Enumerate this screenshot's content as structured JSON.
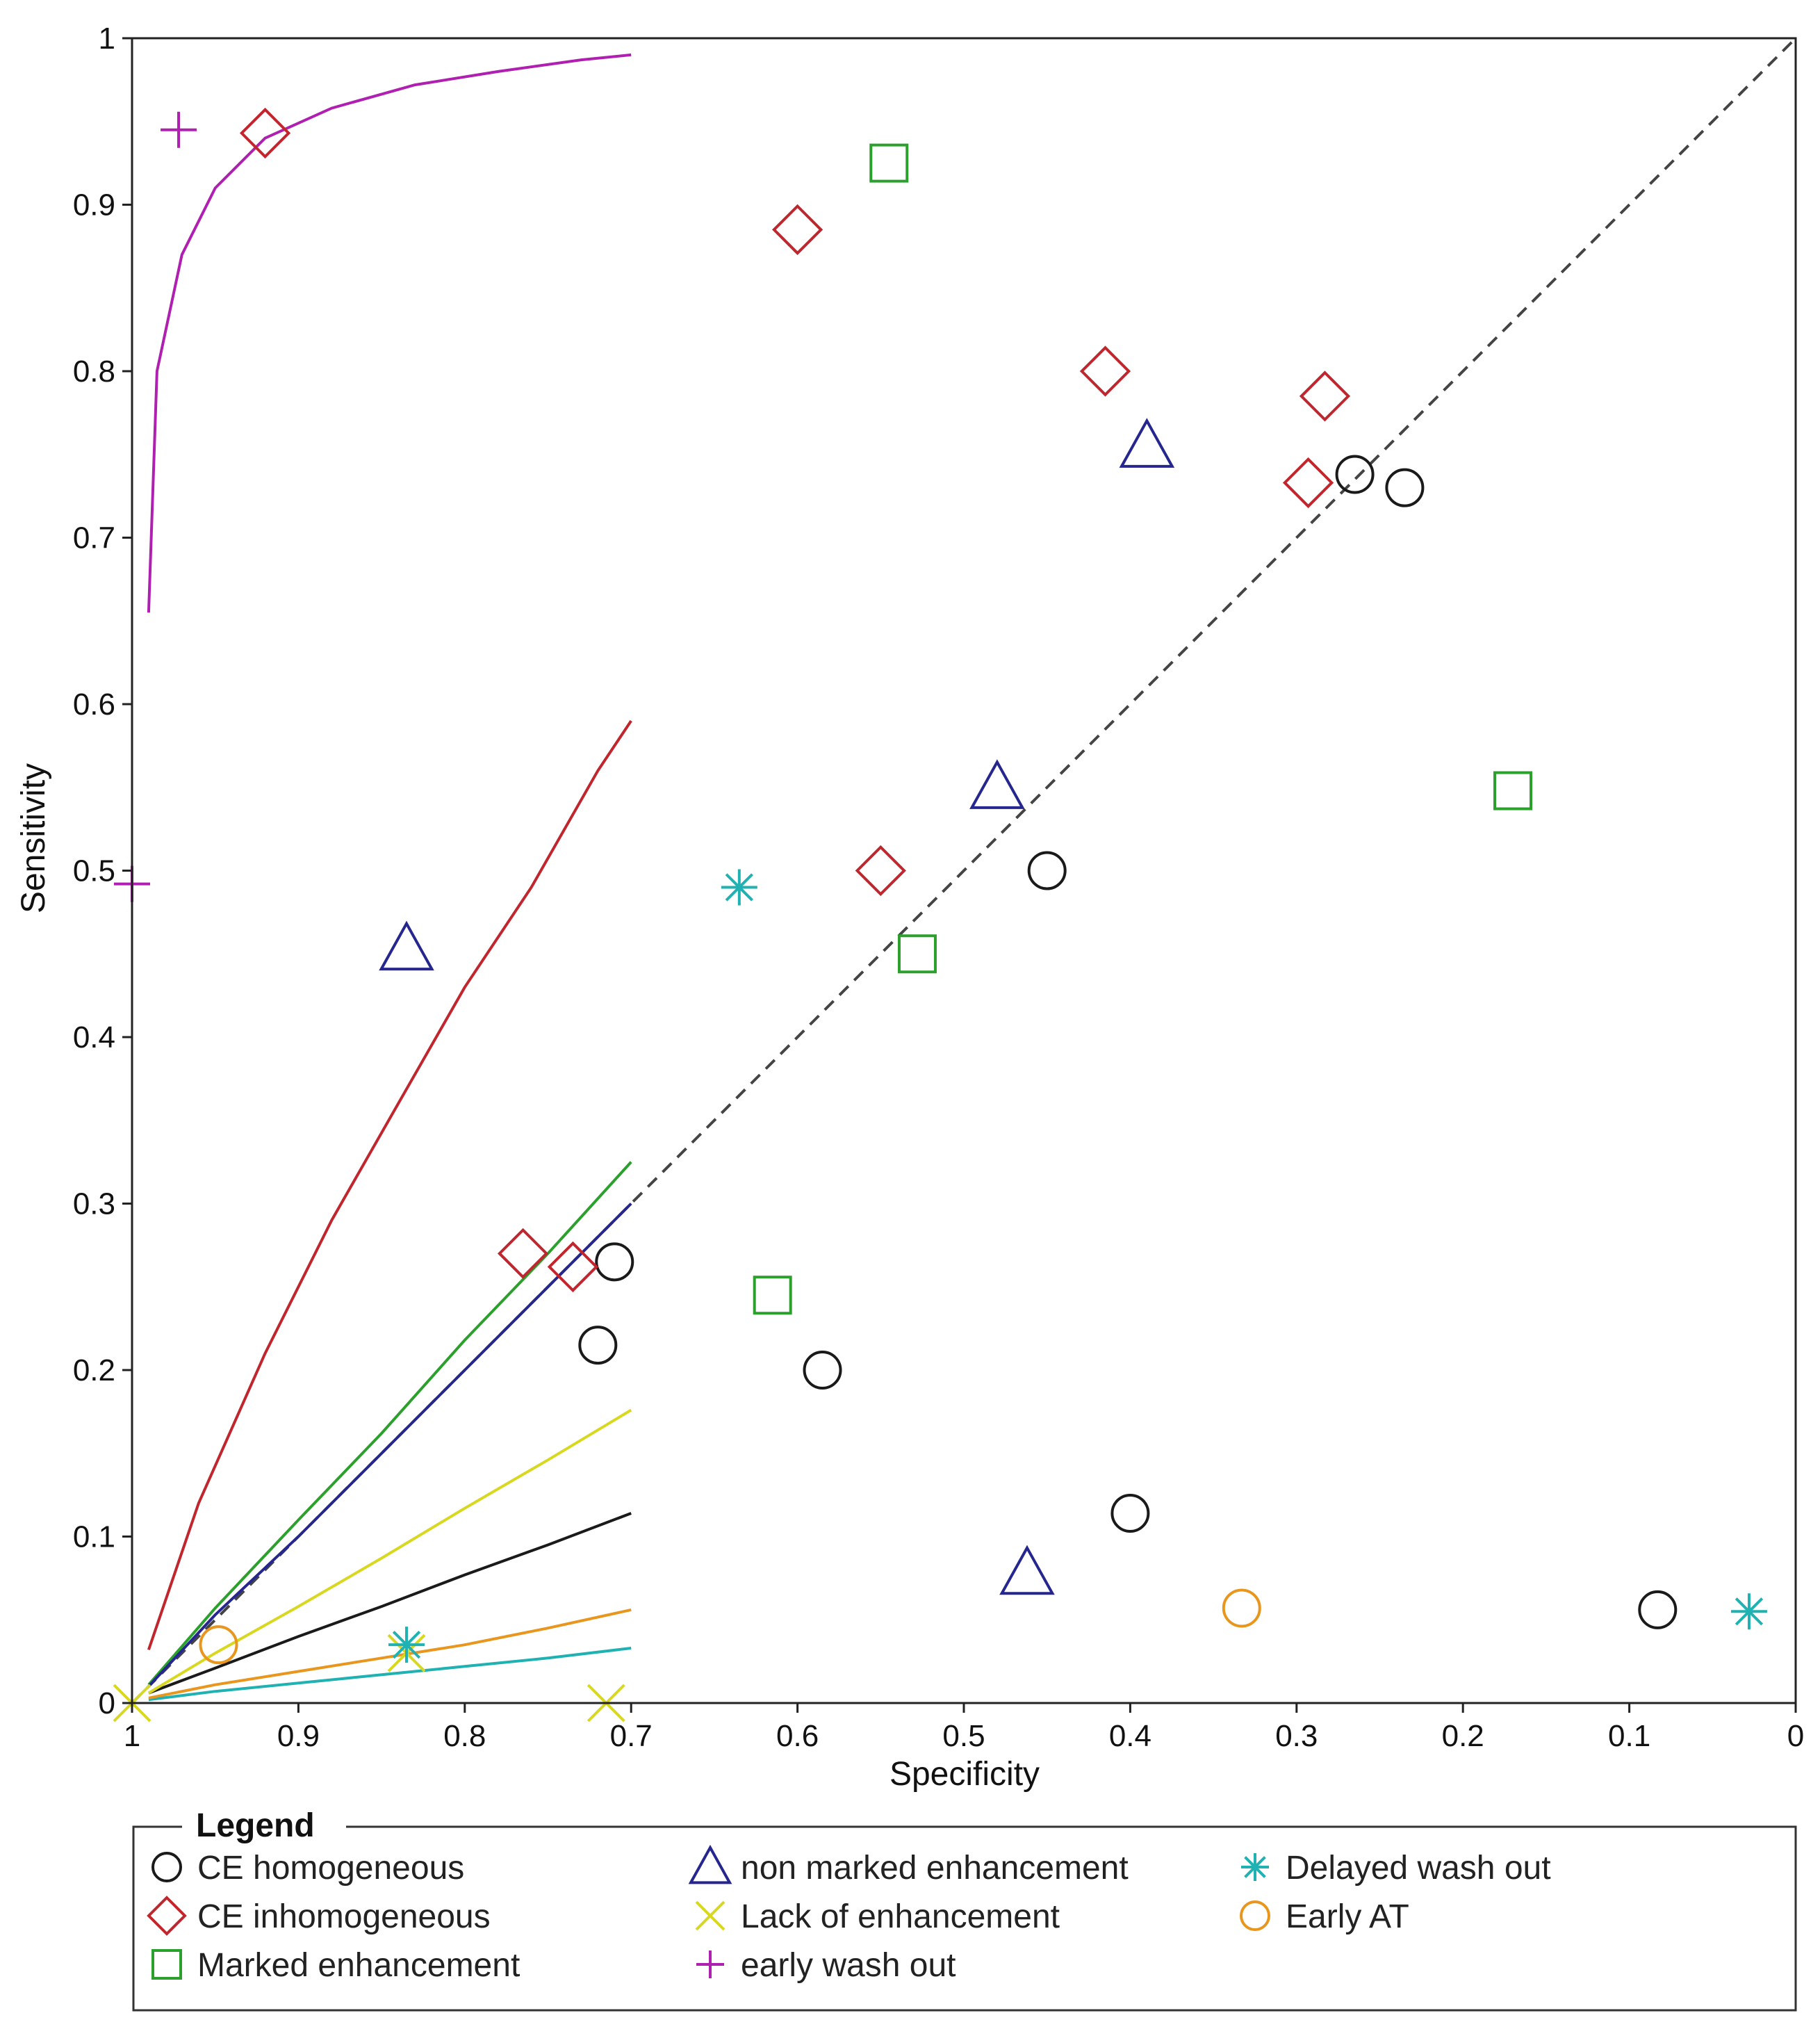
{
  "chart_data": {
    "type": "scatter",
    "title": "",
    "xlabel": "Specificity",
    "ylabel": "Sensitivity",
    "xlim": [
      1,
      0
    ],
    "ylim": [
      0,
      1
    ],
    "x_reversed": true,
    "grid": false,
    "xticks": [
      1,
      0.9,
      0.8,
      0.7,
      0.6,
      0.5,
      0.4,
      0.3,
      0.2,
      0.1,
      0
    ],
    "xtick_labels": [
      "1",
      "0.9",
      "0.8",
      "0.7",
      "0.6",
      "0.5",
      "0.4",
      "0.3",
      "0.2",
      "0.1",
      "0"
    ],
    "yticks": [
      0,
      0.1,
      0.2,
      0.3,
      0.4,
      0.5,
      0.6,
      0.7,
      0.8,
      0.9,
      1
    ],
    "ytick_labels": [
      "0",
      "0.1",
      "0.2",
      "0.3",
      "0.4",
      "0.5",
      "0.6",
      "0.7",
      "0.8",
      "0.9",
      "1"
    ],
    "reference_line": {
      "style": "dashed",
      "color": "#444444",
      "from": [
        1,
        0
      ],
      "to": [
        0,
        1
      ]
    },
    "legend_title": "Legend",
    "legend_position": "bottom",
    "series": [
      {
        "name": "CE homogeneous",
        "marker": "circle",
        "color": "#1a1a1a",
        "points": [
          [
            0.265,
            0.738
          ],
          [
            0.235,
            0.73
          ],
          [
            0.45,
            0.5
          ],
          [
            0.71,
            0.265
          ],
          [
            0.72,
            0.215
          ],
          [
            0.585,
            0.2
          ],
          [
            0.4,
            0.114
          ],
          [
            0.083,
            0.056
          ]
        ],
        "curve": [
          [
            0.99,
            0.006
          ],
          [
            0.95,
            0.021
          ],
          [
            0.9,
            0.04
          ],
          [
            0.85,
            0.058
          ],
          [
            0.8,
            0.077
          ],
          [
            0.75,
            0.095
          ],
          [
            0.7,
            0.114
          ]
        ]
      },
      {
        "name": "CE inhomogeneous",
        "marker": "diamond",
        "color": "#c0262d",
        "points": [
          [
            0.92,
            0.943
          ],
          [
            0.6,
            0.885
          ],
          [
            0.415,
            0.8
          ],
          [
            0.283,
            0.785
          ],
          [
            0.293,
            0.733
          ],
          [
            0.55,
            0.5
          ],
          [
            0.765,
            0.27
          ],
          [
            0.735,
            0.262
          ]
        ],
        "curve": [
          [
            0.99,
            0.032
          ],
          [
            0.96,
            0.12
          ],
          [
            0.92,
            0.21
          ],
          [
            0.88,
            0.29
          ],
          [
            0.84,
            0.36
          ],
          [
            0.8,
            0.43
          ],
          [
            0.76,
            0.49
          ],
          [
            0.72,
            0.56
          ],
          [
            0.7,
            0.59
          ]
        ]
      },
      {
        "name": "Marked enhancement",
        "marker": "square",
        "color": "#2ca02c",
        "points": [
          [
            0.545,
            0.925
          ],
          [
            0.17,
            0.548
          ],
          [
            0.528,
            0.45
          ],
          [
            0.615,
            0.245
          ]
        ],
        "curve": [
          [
            0.99,
            0.011
          ],
          [
            0.95,
            0.057
          ],
          [
            0.9,
            0.11
          ],
          [
            0.85,
            0.162
          ],
          [
            0.8,
            0.218
          ],
          [
            0.75,
            0.27
          ],
          [
            0.7,
            0.325
          ]
        ]
      },
      {
        "name": "non marked enhancement",
        "marker": "triangle",
        "color": "#26268f",
        "points": [
          [
            0.39,
            0.755
          ],
          [
            0.48,
            0.55
          ],
          [
            0.835,
            0.453
          ],
          [
            0.462,
            0.078
          ]
        ],
        "curve": [
          [
            0.99,
            0.01
          ],
          [
            0.95,
            0.053
          ],
          [
            0.9,
            0.1
          ],
          [
            0.85,
            0.15
          ],
          [
            0.8,
            0.2
          ],
          [
            0.75,
            0.25
          ],
          [
            0.7,
            0.3
          ]
        ]
      },
      {
        "name": "Lack of enhancement",
        "marker": "x",
        "color": "#d8d820",
        "points": [
          [
            1.0,
            0.0
          ],
          [
            0.715,
            0.0
          ],
          [
            0.835,
            0.03
          ]
        ],
        "curve": [
          [
            0.99,
            0.006
          ],
          [
            0.95,
            0.03
          ],
          [
            0.9,
            0.058
          ],
          [
            0.85,
            0.087
          ],
          [
            0.8,
            0.117
          ],
          [
            0.75,
            0.146
          ],
          [
            0.7,
            0.176
          ]
        ]
      },
      {
        "name": "early wash out",
        "marker": "plus",
        "color": "#b020b0",
        "points": [
          [
            0.972,
            0.945
          ],
          [
            1.0,
            0.492
          ]
        ],
        "curve": [
          [
            0.99,
            0.655
          ],
          [
            0.985,
            0.8
          ],
          [
            0.97,
            0.87
          ],
          [
            0.95,
            0.91
          ],
          [
            0.92,
            0.94
          ],
          [
            0.88,
            0.958
          ],
          [
            0.83,
            0.972
          ],
          [
            0.78,
            0.98
          ],
          [
            0.73,
            0.987
          ],
          [
            0.7,
            0.99
          ]
        ]
      },
      {
        "name": "Delayed wash out",
        "marker": "asterisk",
        "color": "#20b2b2",
        "points": [
          [
            0.635,
            0.49
          ],
          [
            0.835,
            0.035
          ],
          [
            0.028,
            0.055
          ]
        ],
        "curve": [
          [
            0.99,
            0.002
          ],
          [
            0.95,
            0.007
          ],
          [
            0.9,
            0.012
          ],
          [
            0.85,
            0.017
          ],
          [
            0.8,
            0.022
          ],
          [
            0.75,
            0.027
          ],
          [
            0.7,
            0.033
          ]
        ]
      },
      {
        "name": "Early AT",
        "marker": "circle",
        "color": "#e8961e",
        "points": [
          [
            0.948,
            0.035
          ],
          [
            0.333,
            0.057
          ]
        ],
        "curve": [
          [
            0.99,
            0.003
          ],
          [
            0.95,
            0.011
          ],
          [
            0.9,
            0.019
          ],
          [
            0.85,
            0.027
          ],
          [
            0.8,
            0.035
          ],
          [
            0.75,
            0.045
          ],
          [
            0.7,
            0.056
          ]
        ]
      }
    ],
    "legend_order": [
      "CE homogeneous",
      "non marked enhancement",
      "Delayed wash out",
      "CE inhomogeneous",
      "Lack of enhancement",
      "Early AT",
      "Marked enhancement",
      "early wash out"
    ]
  }
}
